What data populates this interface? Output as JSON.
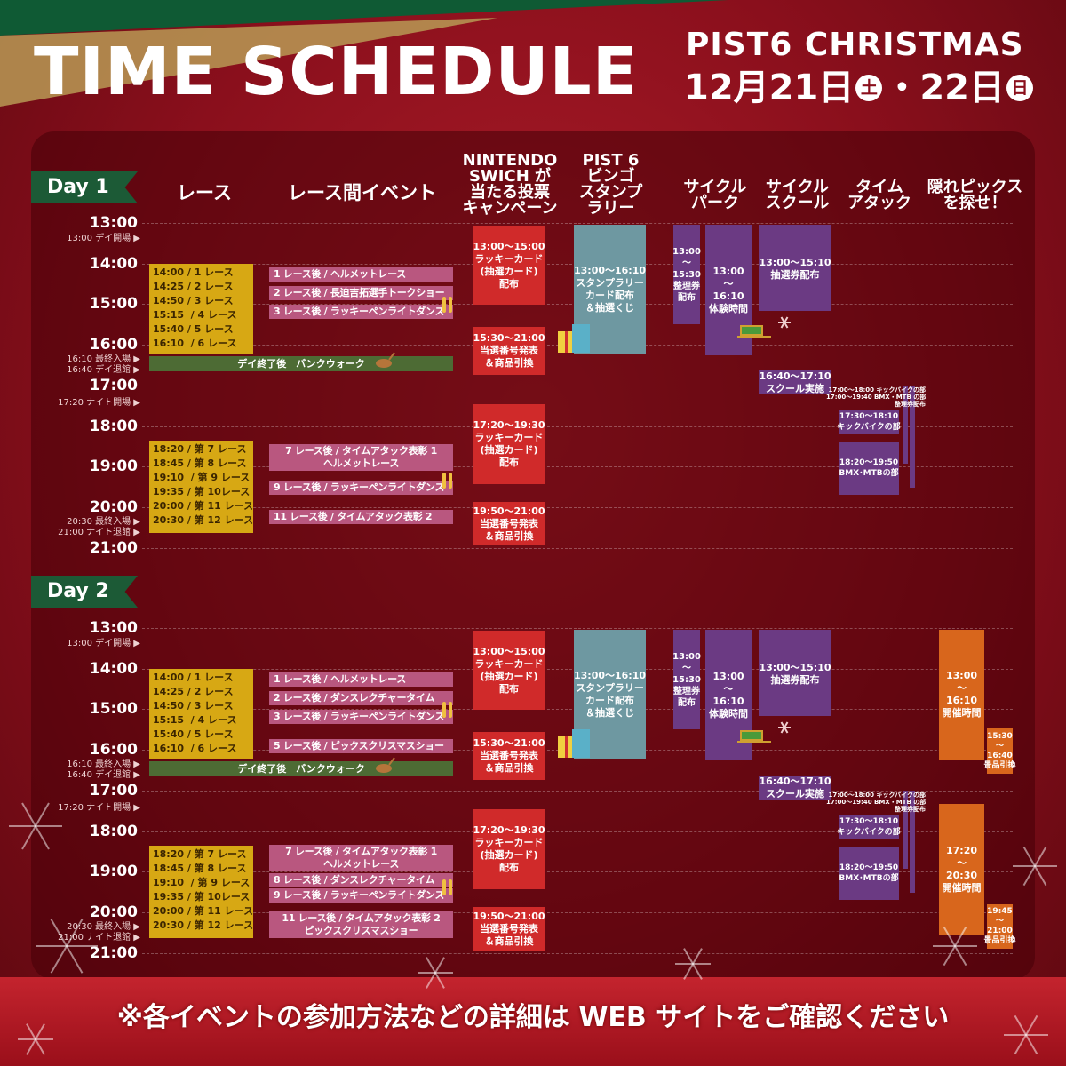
{
  "header": {
    "title": "TIME SCHEDULE",
    "event_name": "PIST6 CHRISTMAS",
    "date_a": "12月21日",
    "day_a": "土",
    "date_b": "・22日",
    "day_b": "日"
  },
  "columns": [
    "レース",
    "レース間イベント",
    "NINTENDO\nSWICH が\n当たる投票\nキャンペーン",
    "PIST 6\nビンゴ\nスタンプ\nラリー",
    "サイクル\nパーク",
    "サイクル\nスクール",
    "タイム\nアタック",
    "隠れピックス\nを探せ！"
  ],
  "colors": {
    "race": "#d7a814",
    "event": "#b9577f",
    "green": "#4d6b34",
    "red": "#d02a2a",
    "teal": "#6e98a1",
    "purple": "#6b3a83",
    "orange": "#d8661c"
  },
  "days": [
    {
      "label": "Day 1",
      "hours": [
        "13:00",
        "14:00",
        "15:00",
        "16:00",
        "17:00",
        "18:00",
        "19:00",
        "20:00",
        "21:00"
      ],
      "markers": [
        "13:00 デイ開場 ▶",
        "16:10 最終入場 ▶",
        "16:40 デイ退館 ▶",
        "17:20 ナイト開場 ▶",
        "20:30  最終入場 ▶",
        "21:00 ナイト退館 ▶"
      ],
      "races": [
        "14:00 / 1 レース\n14:25 / 2 レース\n14:50 / 3 レース\n15:15  / 4 レース\n15:40 / 5 レース\n16:10  / 6 レース",
        "18:20 / 第 7 レース\n18:45 / 第 8 レース\n19:10  / 第 9 レース\n19:35 / 第 10レース\n20:00 / 第 11 レース\n20:30 / 第 12 レース"
      ],
      "events": [
        "1 レース後 / ヘルメットレース",
        "2 レース後 / 長迫吉拓選手トークショー",
        "3 レース後 / ラッキーペンライトダンス",
        "7 レース後 / タイムアタック表彰 1\nヘルメットレース",
        "9 レース後 / ラッキーペンライトダンス",
        "11 レース後 / タイムアタック表彰 2"
      ],
      "bankwalk": "デイ終了後　バンクウォーク",
      "nintendo": [
        "13:00〜15:00\nラッキーカード\n(抽選カード)\n配布",
        "15:30〜21:00\n当選番号発表\n＆商品引換",
        "17:20〜19:30\nラッキーカード\n(抽選カード)\n配布",
        "19:50〜21:00\n当選番号発表\n＆商品引換"
      ],
      "bingo": [
        "13:00〜16:10\nスタンプラリー\nカード配布\n＆抽選くじ"
      ],
      "park": [
        "13:00\n〜\n15:30\n整理券\n配布",
        "13:00\n〜\n16:10\n体験時間"
      ],
      "school": [
        "13:00〜15:10\n抽選券配布",
        "16:40〜17:10\nスクール実施"
      ],
      "timeattack": {
        "note": "17:00〜18:00 キックバイクの部\n17:00〜19:40 BMX・MTB の部\n整理券配布",
        "blocks": [
          "17:30〜18:10\nキックバイクの部",
          "18:20〜19:50\nBMX･MTBの部"
        ]
      },
      "hidden": []
    },
    {
      "label": "Day 2",
      "hours": [
        "13:00",
        "14:00",
        "15:00",
        "16:00",
        "17:00",
        "18:00",
        "19:00",
        "20:00",
        "21:00"
      ],
      "markers": [
        "13:00 デイ開場 ▶",
        "16:10 最終入場 ▶",
        "16:40 デイ退館 ▶",
        "17:20 ナイト開場 ▶",
        "20:30  最終入場 ▶",
        "21:00 ナイト退館 ▶"
      ],
      "races": [
        "14:00 / 1 レース\n14:25 / 2 レース\n14:50 / 3 レース\n15:15  / 4 レース\n15:40 / 5 レース\n16:10  / 6 レース",
        "18:20 / 第 7 レース\n18:45 / 第 8 レース\n19:10  / 第 9 レース\n19:35 / 第 10レース\n20:00 / 第 11 レース\n20:30 / 第 12 レース"
      ],
      "events": [
        "1 レース後 / ヘルメットレース",
        "2 レース後 / ダンスレクチャータイム",
        "3 レース後 / ラッキーペンライトダンス",
        "5 レース後 / ピックスクリスマスショー",
        "7 レース後 / タイムアタック表彰 1\nヘルメットレース",
        "8 レース後 / ダンスレクチャータイム",
        "9 レース後 / ラッキーペンライトダンス",
        "11 レース後 / タイムアタック表彰 2\nピックスクリスマスショー"
      ],
      "bankwalk": "デイ終了後　バンクウォーク",
      "nintendo": [
        "13:00〜15:00\nラッキーカード\n(抽選カード)\n配布",
        "15:30〜21:00\n当選番号発表\n＆商品引換",
        "17:20〜19:30\nラッキーカード\n(抽選カード)\n配布",
        "19:50〜21:00\n当選番号発表\n＆商品引換"
      ],
      "bingo": [
        "13:00〜16:10\nスタンプラリー\nカード配布\n＆抽選くじ"
      ],
      "park": [
        "13:00\n〜\n15:30\n整理券\n配布",
        "13:00\n〜\n16:10\n体験時間"
      ],
      "school": [
        "13:00〜15:10\n抽選券配布",
        "16:40〜17:10\nスクール実施"
      ],
      "timeattack": {
        "note": "17:00〜18:00 キックバイクの部\n17:00〜19:40 BMX・MTB の部\n整理券配布",
        "blocks": [
          "17:30〜18:10\nキックバイクの部",
          "18:20〜19:50\nBMX･MTBの部"
        ]
      },
      "hidden": [
        "13:00\n〜\n16:10\n開催時間",
        "15:30\n〜\n16:40\n景品引換",
        "17:20\n〜\n20:30\n開催時間",
        "19:45\n〜\n21:00\n景品引換"
      ]
    }
  ],
  "footer": "※各イベントの参加方法などの詳細は WEB サイトをご確認ください"
}
